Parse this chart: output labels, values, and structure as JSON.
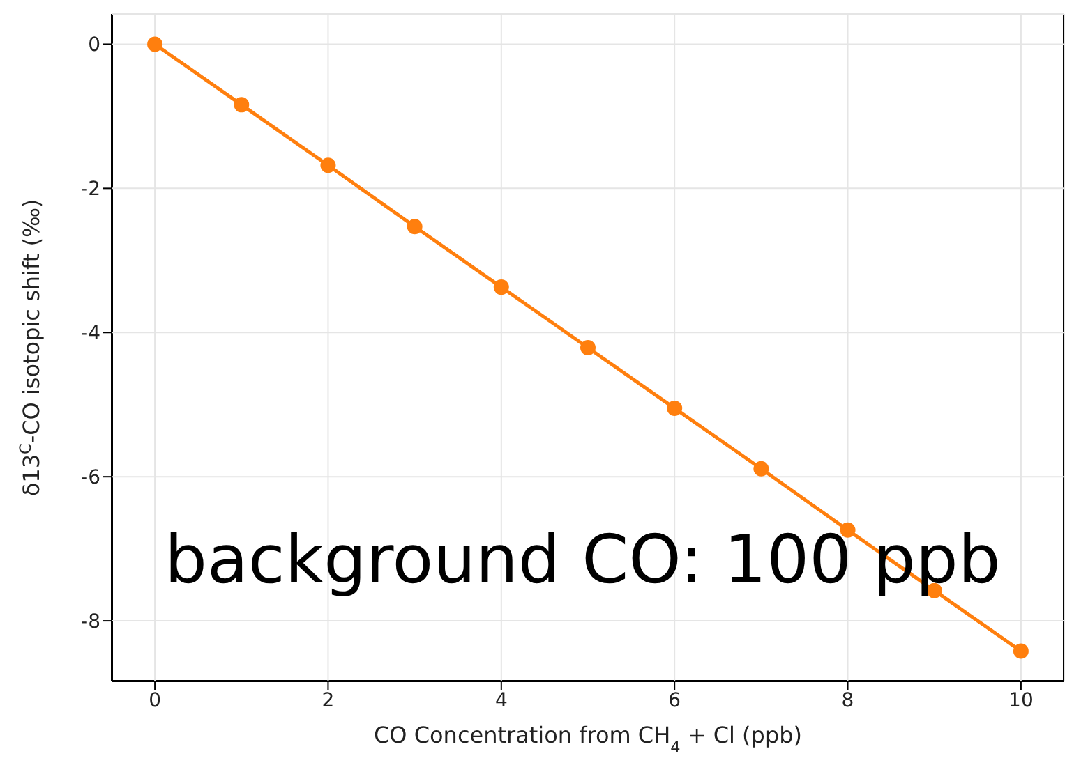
{
  "chart_data": {
    "type": "line",
    "xlabel": "CO Concentration from CH$_{4}$ + Cl (ppb)",
    "ylabel": "δ13$^{C}$-CO isotopic shift (‰)",
    "x": [
      0,
      1,
      2,
      3,
      4,
      5,
      6,
      7,
      8,
      9,
      10
    ],
    "series": [
      {
        "color": "#ff7f0e",
        "values": [
          0,
          -0.84,
          -1.68,
          -2.53,
          -3.37,
          -4.21,
          -5.05,
          -5.89,
          -6.74,
          -7.58,
          -8.42
        ]
      }
    ],
    "xlim": [
      -0.5,
      10.5
    ],
    "xticks": [
      0,
      2,
      4,
      6,
      8,
      10
    ],
    "ylim": [
      -8.84,
      0.42
    ],
    "yticks": [
      -8,
      -6,
      -4,
      -2,
      0
    ],
    "grid": true,
    "marker": "circle",
    "line_style": "solid",
    "annotations": [
      "background CO: 100 ppb"
    ]
  }
}
